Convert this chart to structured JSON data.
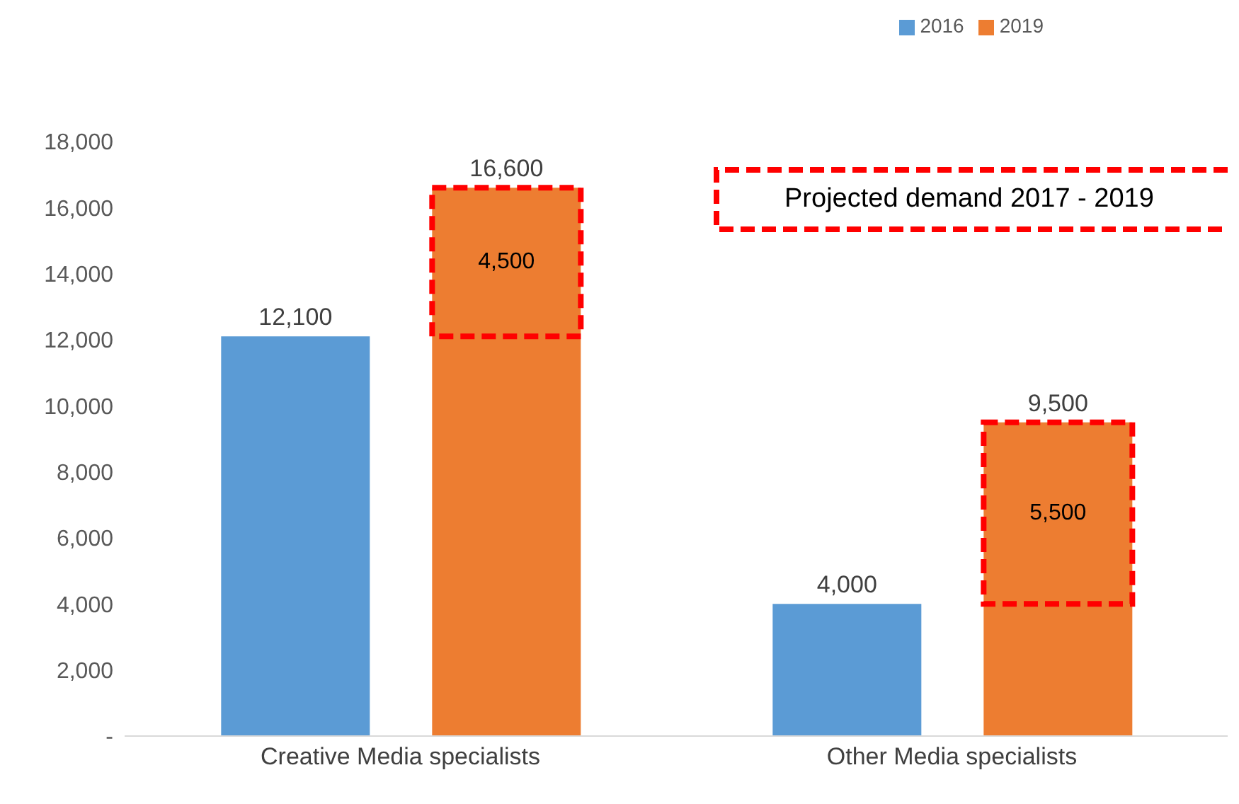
{
  "chart_data": {
    "type": "bar",
    "categories": [
      "Creative Media specialists",
      "Other Media specialists"
    ],
    "series": [
      {
        "name": "2016",
        "color": "#5b9bd5",
        "values": [
          12100,
          4000
        ],
        "value_labels": [
          "12,100",
          "4,000"
        ]
      },
      {
        "name": "2019",
        "color": "#ed7d31",
        "values": [
          16600,
          9500
        ],
        "value_labels": [
          "16,600",
          "9,500"
        ]
      }
    ],
    "ylim": [
      0,
      18000
    ],
    "yticks": [
      {
        "value": 0,
        "label": "-"
      },
      {
        "value": 2000,
        "label": "2,000"
      },
      {
        "value": 4000,
        "label": "4,000"
      },
      {
        "value": 6000,
        "label": "6,000"
      },
      {
        "value": 8000,
        "label": "8,000"
      },
      {
        "value": 10000,
        "label": "10,000"
      },
      {
        "value": 12000,
        "label": "12,000"
      },
      {
        "value": 14000,
        "label": "14,000"
      },
      {
        "value": 16000,
        "label": "16,000"
      },
      {
        "value": 18000,
        "label": "18,000"
      }
    ],
    "legend": "top right",
    "grid": false,
    "annotations": [
      "4,500",
      "5,500",
      "Projected demand 2017 - 2019"
    ]
  }
}
